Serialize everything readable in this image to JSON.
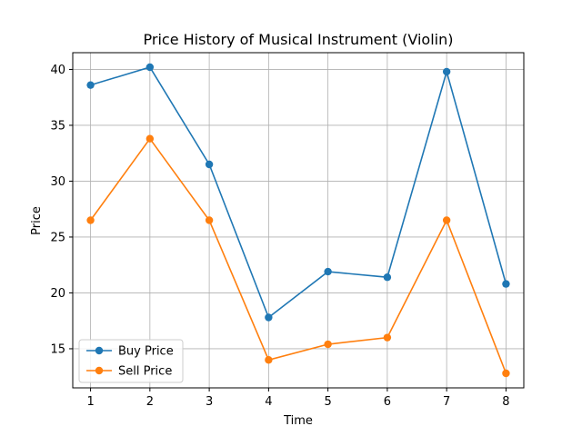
{
  "chart_data": {
    "type": "line",
    "title": "Price History of Musical Instrument (Violin)",
    "xlabel": "Time",
    "ylabel": "Price",
    "x": [
      1,
      2,
      3,
      4,
      5,
      6,
      7,
      8
    ],
    "xlim": [
      0.7,
      8.3
    ],
    "ylim": [
      11.5,
      41.5
    ],
    "yticks": [
      15,
      20,
      25,
      30,
      35,
      40
    ],
    "grid": true,
    "legend_position": "lower-left",
    "series": [
      {
        "name": "Buy Price",
        "color": "#1f77b4",
        "marker": "circle",
        "values": [
          38.6,
          40.2,
          31.5,
          17.8,
          21.9,
          21.4,
          39.8,
          20.8
        ]
      },
      {
        "name": "Sell Price",
        "color": "#ff7f0e",
        "marker": "circle",
        "values": [
          26.5,
          33.8,
          26.5,
          14.0,
          15.4,
          16.0,
          26.5,
          12.8
        ]
      }
    ]
  }
}
